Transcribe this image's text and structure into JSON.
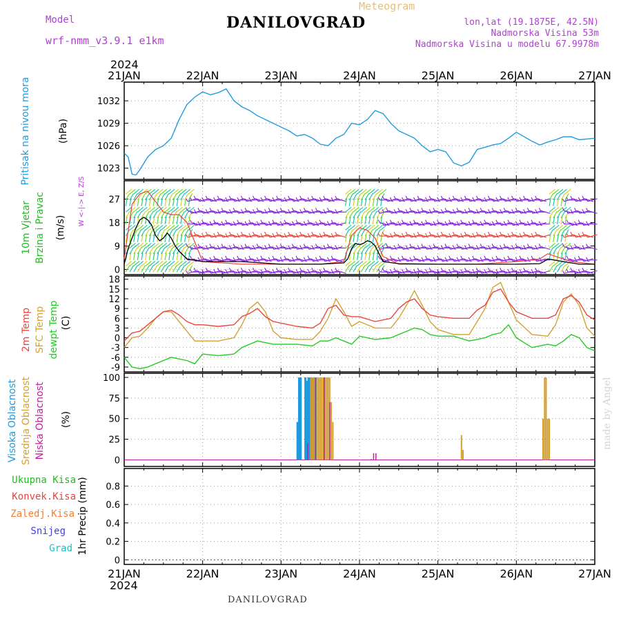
{
  "header": {
    "model_label": "Model",
    "model_name": "wrf-nmm_v3.9.1 e1km",
    "title": "DANILOVGRAD",
    "meteogram_label": "Meteogram",
    "lonlat": "lon,lat (19.1875E, 42.5N)",
    "elevation": "Nadmorska Visina 53m",
    "model_elevation": "Nadmorska Visina u modelu 67.9978m",
    "footer_station": "DANILOVGRAD",
    "credit": "made by Angel",
    "year_top": "2024",
    "year_bottom": "2024"
  },
  "colors": {
    "pressure": "#1e9be0",
    "temp2m": "#e8453c",
    "sfc_temp": "#d4a030",
    "dewpt": "#22cc22",
    "high_cloud": "#1e9be0",
    "mid_cloud": "#d4a030",
    "low_cloud": "#c020a0",
    "wind_label": "#22bb22",
    "barb_purple": "#8a1ee0",
    "model_label": "#b040d0",
    "meteogram_label": "#e8c070",
    "precip_total": "#22bb22",
    "precip_conv": "#e8453c",
    "precip_frozen": "#f08030",
    "precip_snow": "#4040e0",
    "precip_hail": "#20c0c0"
  },
  "chart_data": [
    {
      "type": "line",
      "id": "pressure",
      "ylabel": "(hPa)",
      "side_labels": [
        "Pritisak na nivou mora"
      ],
      "xticks": [
        "21JAN",
        "22JAN",
        "23JAN",
        "24JAN",
        "25JAN",
        "26JAN",
        "27JAN"
      ],
      "ylim": [
        1021.5,
        1034.5
      ],
      "yticks": [
        1023,
        1026,
        1029,
        1032
      ],
      "grid": true,
      "series": [
        {
          "x": [
            0,
            0.05,
            0.1,
            0.15,
            0.2,
            0.3,
            0.4,
            0.5,
            0.6,
            0.7,
            0.8,
            0.9,
            1.0,
            1.1,
            1.2,
            1.3,
            1.4,
            1.5,
            1.6,
            1.7,
            1.8,
            1.9,
            2.0,
            2.1,
            2.2,
            2.3,
            2.4,
            2.5,
            2.6,
            2.7,
            2.8,
            2.9,
            3.0,
            3.1,
            3.2,
            3.3,
            3.4,
            3.5,
            3.6,
            3.7,
            3.8,
            3.9,
            4.0,
            4.1,
            4.2,
            4.3,
            4.4,
            4.5,
            4.6,
            4.7,
            4.8,
            4.9,
            5.0,
            5.1,
            5.2,
            5.3,
            5.4,
            5.5,
            5.6,
            5.7,
            5.8,
            5.9,
            6.0
          ],
          "values": [
            1025,
            1024.5,
            1022.2,
            1022.1,
            1022.8,
            1024.5,
            1025.5,
            1026,
            1027,
            1029.5,
            1031.5,
            1032.5,
            1033.2,
            1032.8,
            1033.1,
            1033.6,
            1032,
            1031.2,
            1030.7,
            1030,
            1029.5,
            1029,
            1028.5,
            1028,
            1027.3,
            1027.5,
            1027,
            1026.2,
            1026,
            1027,
            1027.5,
            1029,
            1028.8,
            1029.5,
            1030.7,
            1030.3,
            1029,
            1028,
            1027.5,
            1027,
            1026,
            1025.2,
            1025.5,
            1025.2,
            1023.7,
            1023.3,
            1023.8,
            1025.5,
            1025.8,
            1026.1,
            1026.3,
            1027,
            1027.8,
            1027.2,
            1026.6,
            1026.1,
            1026.5,
            1026.8,
            1027.2,
            1027.2,
            1026.8,
            1026.9,
            1027
          ]
        }
      ]
    },
    {
      "type": "line",
      "id": "wind",
      "ylabel": "(m/s)",
      "side_labels": [
        "10m Vjetar",
        "Brzina i Pravac"
      ],
      "compass": "W <-|-> E, Z/S",
      "ylim": [
        -2,
        34
      ],
      "yticks": [
        0,
        9,
        18,
        27
      ],
      "grid": true,
      "series": [
        {
          "name": "speed",
          "color": "#000000",
          "x": [
            0,
            0.05,
            0.1,
            0.15,
            0.2,
            0.25,
            0.3,
            0.35,
            0.4,
            0.45,
            0.5,
            0.55,
            0.6,
            0.65,
            0.7,
            0.8,
            1.0,
            1.5,
            2.0,
            2.5,
            2.8,
            2.85,
            2.9,
            2.95,
            3.0,
            3.05,
            3.1,
            3.15,
            3.2,
            3.25,
            3.3,
            3.5,
            4.0,
            4.5,
            5.0,
            5.3,
            5.35,
            5.4,
            5.5,
            5.6,
            5.7,
            5.8,
            6.0
          ],
          "values": [
            2,
            8,
            12,
            16,
            19,
            20,
            19,
            17,
            13,
            11,
            12,
            14,
            12,
            9,
            7,
            4,
            3,
            3,
            2,
            2,
            2.5,
            4,
            8,
            10,
            9.5,
            10,
            11,
            10.5,
            9,
            6,
            3,
            2.2,
            2,
            2,
            2,
            2.2,
            3,
            4,
            3.5,
            3,
            2.5,
            2,
            2
          ]
        },
        {
          "name": "gust",
          "color": "#e8453c",
          "x": [
            0,
            0.1,
            0.2,
            0.3,
            0.4,
            0.5,
            0.6,
            0.7,
            0.8,
            1.0,
            1.5,
            2.0,
            2.5,
            2.8,
            2.9,
            3.0,
            3.1,
            3.2,
            3.3,
            3.5,
            4.0,
            4.5,
            5.0,
            5.3,
            5.4,
            5.5,
            5.7,
            6.0
          ],
          "values": [
            4,
            25,
            29,
            30,
            26,
            22,
            21,
            21,
            18,
            3,
            2,
            2,
            2,
            3,
            13,
            16,
            15,
            12,
            5,
            2,
            2,
            2,
            3,
            4,
            6,
            5,
            3,
            2
          ]
        }
      ],
      "barbs": {
        "dense_segments": [
          [
            0.0,
            0.85
          ],
          [
            2.8,
            3.3
          ],
          [
            5.4,
            5.65
          ]
        ],
        "levels": [
          0,
          9,
          18,
          27
        ],
        "light_wind_symbol": "purple"
      }
    },
    {
      "type": "line",
      "id": "temperature",
      "ylabel": "(C)",
      "side_labels": [
        "2m Temp",
        "SFC Temp",
        "dewpt Temp"
      ],
      "ylim": [
        -10.5,
        19
      ],
      "yticks": [
        -9,
        -6,
        -3,
        0,
        3,
        6,
        9,
        12,
        15,
        18
      ],
      "grid": true,
      "series": [
        {
          "name": "2m Temp",
          "x": [
            0,
            0.1,
            0.2,
            0.3,
            0.4,
            0.5,
            0.6,
            0.7,
            0.8,
            0.9,
            1.0,
            1.2,
            1.4,
            1.5,
            1.6,
            1.7,
            1.8,
            1.9,
            2.0,
            2.2,
            2.4,
            2.5,
            2.6,
            2.7,
            2.8,
            2.9,
            3.0,
            3.2,
            3.4,
            3.5,
            3.6,
            3.7,
            3.8,
            3.9,
            4.0,
            4.2,
            4.4,
            4.5,
            4.6,
            4.7,
            4.8,
            4.9,
            5.0,
            5.2,
            5.4,
            5.5,
            5.6,
            5.7,
            5.8,
            5.9,
            6.0
          ],
          "values": [
            -1,
            1.5,
            2,
            4,
            6,
            8,
            8.5,
            7,
            5,
            4,
            4,
            3.5,
            4,
            6.5,
            7.5,
            9,
            6.5,
            5,
            4.5,
            3.5,
            3,
            4.5,
            9,
            10,
            7,
            6.5,
            6.5,
            5,
            6,
            9,
            11,
            12,
            9,
            7,
            6.5,
            6,
            6,
            8.5,
            10,
            14,
            15,
            11,
            8,
            6,
            6,
            7,
            12,
            13,
            11,
            7,
            5.5
          ]
        },
        {
          "name": "SFC Temp",
          "x": [
            0,
            0.1,
            0.2,
            0.3,
            0.4,
            0.5,
            0.6,
            0.7,
            0.8,
            0.9,
            1.0,
            1.2,
            1.4,
            1.5,
            1.6,
            1.7,
            1.8,
            1.9,
            2.0,
            2.2,
            2.4,
            2.5,
            2.6,
            2.7,
            2.8,
            2.9,
            3.0,
            3.2,
            3.4,
            3.5,
            3.6,
            3.7,
            3.8,
            3.9,
            4.0,
            4.2,
            4.4,
            4.5,
            4.6,
            4.7,
            4.8,
            4.9,
            5.0,
            5.2,
            5.4,
            5.5,
            5.6,
            5.7,
            5.8,
            5.9,
            6.0
          ],
          "values": [
            -3,
            0,
            0.5,
            3,
            6,
            8,
            8,
            5,
            2,
            -1,
            -1,
            -1,
            0,
            4,
            9,
            11,
            8,
            2,
            0,
            -0.5,
            -0.5,
            2,
            6,
            12,
            8,
            3.5,
            5,
            3,
            3,
            6,
            10,
            14.5,
            10,
            5,
            2.5,
            1,
            1,
            5,
            9,
            15.5,
            17,
            11,
            5.5,
            1,
            0.5,
            4,
            11,
            13.5,
            10,
            3,
            0.5
          ]
        },
        {
          "name": "dewpt Temp",
          "x": [
            0,
            0.1,
            0.2,
            0.3,
            0.4,
            0.5,
            0.6,
            0.7,
            0.8,
            0.9,
            1.0,
            1.2,
            1.4,
            1.5,
            1.6,
            1.7,
            1.8,
            1.9,
            2.0,
            2.2,
            2.4,
            2.5,
            2.6,
            2.7,
            2.8,
            2.9,
            3.0,
            3.2,
            3.4,
            3.5,
            3.6,
            3.7,
            3.8,
            3.9,
            4.0,
            4.2,
            4.4,
            4.5,
            4.6,
            4.7,
            4.8,
            4.9,
            5.0,
            5.2,
            5.4,
            5.5,
            5.6,
            5.7,
            5.8,
            5.9,
            6.0
          ],
          "values": [
            -6,
            -9,
            -9.5,
            -9,
            -8,
            -7,
            -6,
            -6.5,
            -7,
            -8,
            -5,
            -5.5,
            -5,
            -3,
            -2,
            -1,
            -1.5,
            -2,
            -2,
            -2,
            -2.5,
            -1,
            -1,
            0,
            -1,
            -2,
            0.5,
            -0.5,
            0,
            1,
            2,
            3,
            2.5,
            1,
            0.5,
            0.5,
            -1,
            -0.5,
            0,
            1,
            1.5,
            4,
            0,
            -3,
            -2,
            -2.5,
            -1,
            1,
            0,
            -3,
            -4
          ]
        }
      ]
    },
    {
      "type": "bar",
      "id": "clouds",
      "ylabel": "(%)",
      "side_labels": [
        "Visoka Oblacnost",
        "Srednja Oblacnost",
        "Niska Oblacnost"
      ],
      "ylim": [
        -8,
        105
      ],
      "yticks": [
        0,
        25,
        50,
        75,
        100
      ],
      "grid": true,
      "series": [
        {
          "name": "Visoka Oblacnost",
          "x": [
            2.21,
            2.23,
            2.25,
            2.31,
            2.33,
            2.35,
            2.37,
            2.39,
            2.41,
            2.43,
            2.45
          ],
          "values": [
            46,
            100,
            100,
            100,
            96,
            100,
            100,
            100,
            100,
            100,
            100
          ]
        },
        {
          "name": "Srednja Oblacnost",
          "x": [
            2.38,
            2.4,
            2.42,
            2.44,
            2.46,
            2.48,
            2.5,
            2.52,
            2.54,
            2.56,
            2.58,
            2.6,
            2.62,
            2.64,
            2.66,
            4.3,
            4.32,
            5.34,
            5.36,
            5.38,
            5.4,
            5.42
          ],
          "values": [
            100,
            100,
            100,
            100,
            100,
            100,
            100,
            100,
            100,
            100,
            100,
            100,
            100,
            70,
            46,
            30,
            12,
            50,
            100,
            100,
            50,
            50
          ]
        },
        {
          "name": "Niska Oblacnost",
          "x": [
            2.34,
            2.44,
            2.55,
            2.62,
            3.15,
            3.18,
            3.21
          ],
          "values": [
            20,
            100,
            100,
            70,
            1,
            8,
            8
          ]
        }
      ]
    },
    {
      "type": "bar",
      "id": "precip",
      "ylabel": "1hr Precip (mm)",
      "side_labels": [
        "Ukupna Kisa",
        "Konvek.Kisa",
        "Zaledj.Kisa",
        "Snijeg",
        "Grad"
      ],
      "ylim": [
        -0.05,
        0.99
      ],
      "yticks": [
        0,
        0.2,
        0.4,
        0.6,
        0.8
      ],
      "ytick_labels": [
        "0",
        "0.2",
        "0.4",
        "0.6",
        "0.8"
      ],
      "grid": true,
      "series": []
    }
  ]
}
